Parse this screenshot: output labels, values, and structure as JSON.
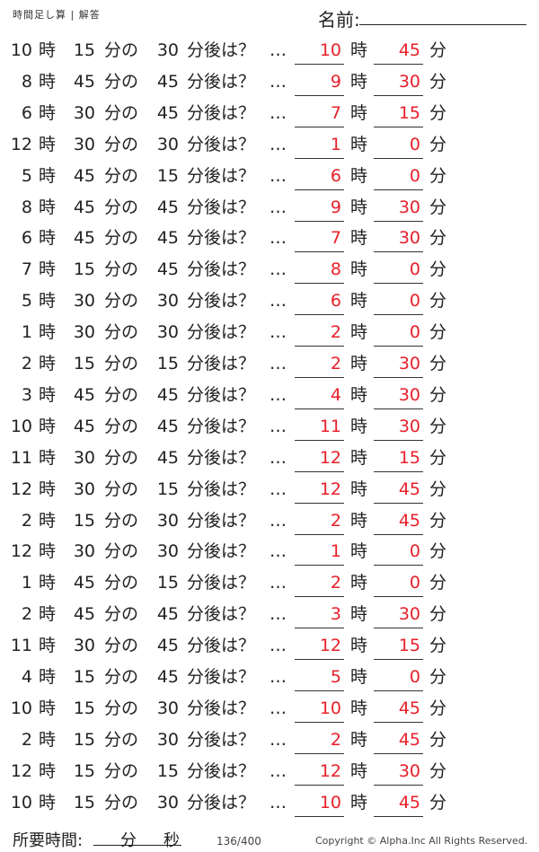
{
  "header": {
    "title": "時間足し算 | 解答",
    "name_label": "名前:"
  },
  "labels": {
    "hour": "時",
    "min_of": "分の",
    "min_after": "分後は？",
    "dots": "…",
    "minute": "分"
  },
  "rows": [
    {
      "h": "10",
      "m": "15",
      "add": "30",
      "ah": "10",
      "am": "45"
    },
    {
      "h": "8",
      "m": "45",
      "add": "45",
      "ah": "9",
      "am": "30"
    },
    {
      "h": "6",
      "m": "30",
      "add": "45",
      "ah": "7",
      "am": "15"
    },
    {
      "h": "12",
      "m": "30",
      "add": "30",
      "ah": "1",
      "am": "0"
    },
    {
      "h": "5",
      "m": "45",
      "add": "15",
      "ah": "6",
      "am": "0"
    },
    {
      "h": "8",
      "m": "45",
      "add": "45",
      "ah": "9",
      "am": "30"
    },
    {
      "h": "6",
      "m": "45",
      "add": "45",
      "ah": "7",
      "am": "30"
    },
    {
      "h": "7",
      "m": "15",
      "add": "45",
      "ah": "8",
      "am": "0"
    },
    {
      "h": "5",
      "m": "30",
      "add": "30",
      "ah": "6",
      "am": "0"
    },
    {
      "h": "1",
      "m": "30",
      "add": "30",
      "ah": "2",
      "am": "0"
    },
    {
      "h": "2",
      "m": "15",
      "add": "15",
      "ah": "2",
      "am": "30"
    },
    {
      "h": "3",
      "m": "45",
      "add": "45",
      "ah": "4",
      "am": "30"
    },
    {
      "h": "10",
      "m": "45",
      "add": "45",
      "ah": "11",
      "am": "30"
    },
    {
      "h": "11",
      "m": "30",
      "add": "45",
      "ah": "12",
      "am": "15"
    },
    {
      "h": "12",
      "m": "30",
      "add": "15",
      "ah": "12",
      "am": "45"
    },
    {
      "h": "2",
      "m": "15",
      "add": "30",
      "ah": "2",
      "am": "45"
    },
    {
      "h": "12",
      "m": "30",
      "add": "30",
      "ah": "1",
      "am": "0"
    },
    {
      "h": "1",
      "m": "45",
      "add": "15",
      "ah": "2",
      "am": "0"
    },
    {
      "h": "2",
      "m": "45",
      "add": "45",
      "ah": "3",
      "am": "30"
    },
    {
      "h": "11",
      "m": "30",
      "add": "45",
      "ah": "12",
      "am": "15"
    },
    {
      "h": "4",
      "m": "15",
      "add": "45",
      "ah": "5",
      "am": "0"
    },
    {
      "h": "10",
      "m": "15",
      "add": "30",
      "ah": "10",
      "am": "45"
    },
    {
      "h": "2",
      "m": "15",
      "add": "30",
      "ah": "2",
      "am": "45"
    },
    {
      "h": "12",
      "m": "15",
      "add": "15",
      "ah": "12",
      "am": "30"
    },
    {
      "h": "10",
      "m": "15",
      "add": "30",
      "ah": "10",
      "am": "45"
    }
  ],
  "footer": {
    "time_label": "所要時間:",
    "min": "分",
    "sec": "秒",
    "page": "136/400",
    "copyright": "Copyright ©  Alpha.Inc All Rights Reserved."
  },
  "colors": {
    "answer": "#e8202a"
  }
}
